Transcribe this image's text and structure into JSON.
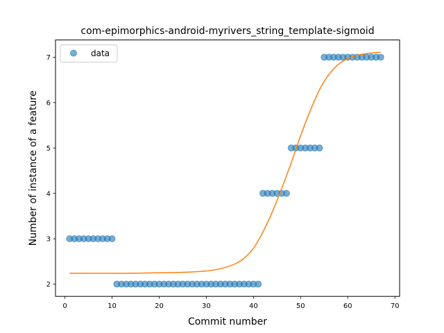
{
  "chart_data": {
    "type": "scatter",
    "title": "com-epimorphics-android-myrivers_string_template-sigmoid",
    "xlabel": "Commit number",
    "ylabel": "Number of instance of a feature",
    "xlim": [
      -2,
      71
    ],
    "ylim": [
      1.73,
      7.38
    ],
    "xticks": [
      0,
      10,
      20,
      30,
      40,
      50,
      60,
      70
    ],
    "yticks": [
      2,
      3,
      4,
      5,
      6,
      7
    ],
    "grid": false,
    "legend": {
      "placement": "top-left",
      "entries": [
        "data"
      ]
    },
    "series": [
      {
        "name": "data",
        "type": "scatter",
        "color": "#1f77b4",
        "alpha": 0.6,
        "x": [
          1,
          2,
          3,
          4,
          5,
          6,
          7,
          8,
          9,
          10,
          11,
          12,
          13,
          14,
          15,
          16,
          17,
          18,
          19,
          20,
          21,
          22,
          23,
          24,
          25,
          26,
          27,
          28,
          29,
          30,
          31,
          32,
          33,
          34,
          35,
          36,
          37,
          38,
          39,
          40,
          41,
          42,
          43,
          44,
          45,
          46,
          47,
          48,
          49,
          50,
          51,
          52,
          53,
          54,
          55,
          56,
          57,
          58,
          59,
          60,
          61,
          62,
          63,
          64,
          65,
          66,
          67
        ],
        "y": [
          3,
          3,
          3,
          3,
          3,
          3,
          3,
          3,
          3,
          3,
          2,
          2,
          2,
          2,
          2,
          2,
          2,
          2,
          2,
          2,
          2,
          2,
          2,
          2,
          2,
          2,
          2,
          2,
          2,
          2,
          2,
          2,
          2,
          2,
          2,
          2,
          2,
          2,
          2,
          2,
          2,
          4,
          4,
          4,
          4,
          4,
          4,
          5,
          5,
          5,
          5,
          5,
          5,
          5,
          7,
          7,
          7,
          7,
          7,
          7,
          7,
          7,
          7,
          7,
          7,
          7,
          7
        ]
      },
      {
        "name": "",
        "type": "line",
        "color": "#ff7f0e",
        "x": [
          1,
          5,
          10,
          15,
          20,
          25,
          30,
          33,
          36,
          38,
          40,
          42,
          44,
          46,
          48,
          50,
          52,
          54,
          56,
          58,
          60,
          62,
          64,
          67
        ],
        "y": [
          2.24,
          2.24,
          2.24,
          2.24,
          2.25,
          2.26,
          2.29,
          2.34,
          2.44,
          2.57,
          2.79,
          3.15,
          3.59,
          4.11,
          4.67,
          5.27,
          5.81,
          6.28,
          6.62,
          6.84,
          6.97,
          7.04,
          7.08,
          7.11
        ]
      }
    ]
  }
}
